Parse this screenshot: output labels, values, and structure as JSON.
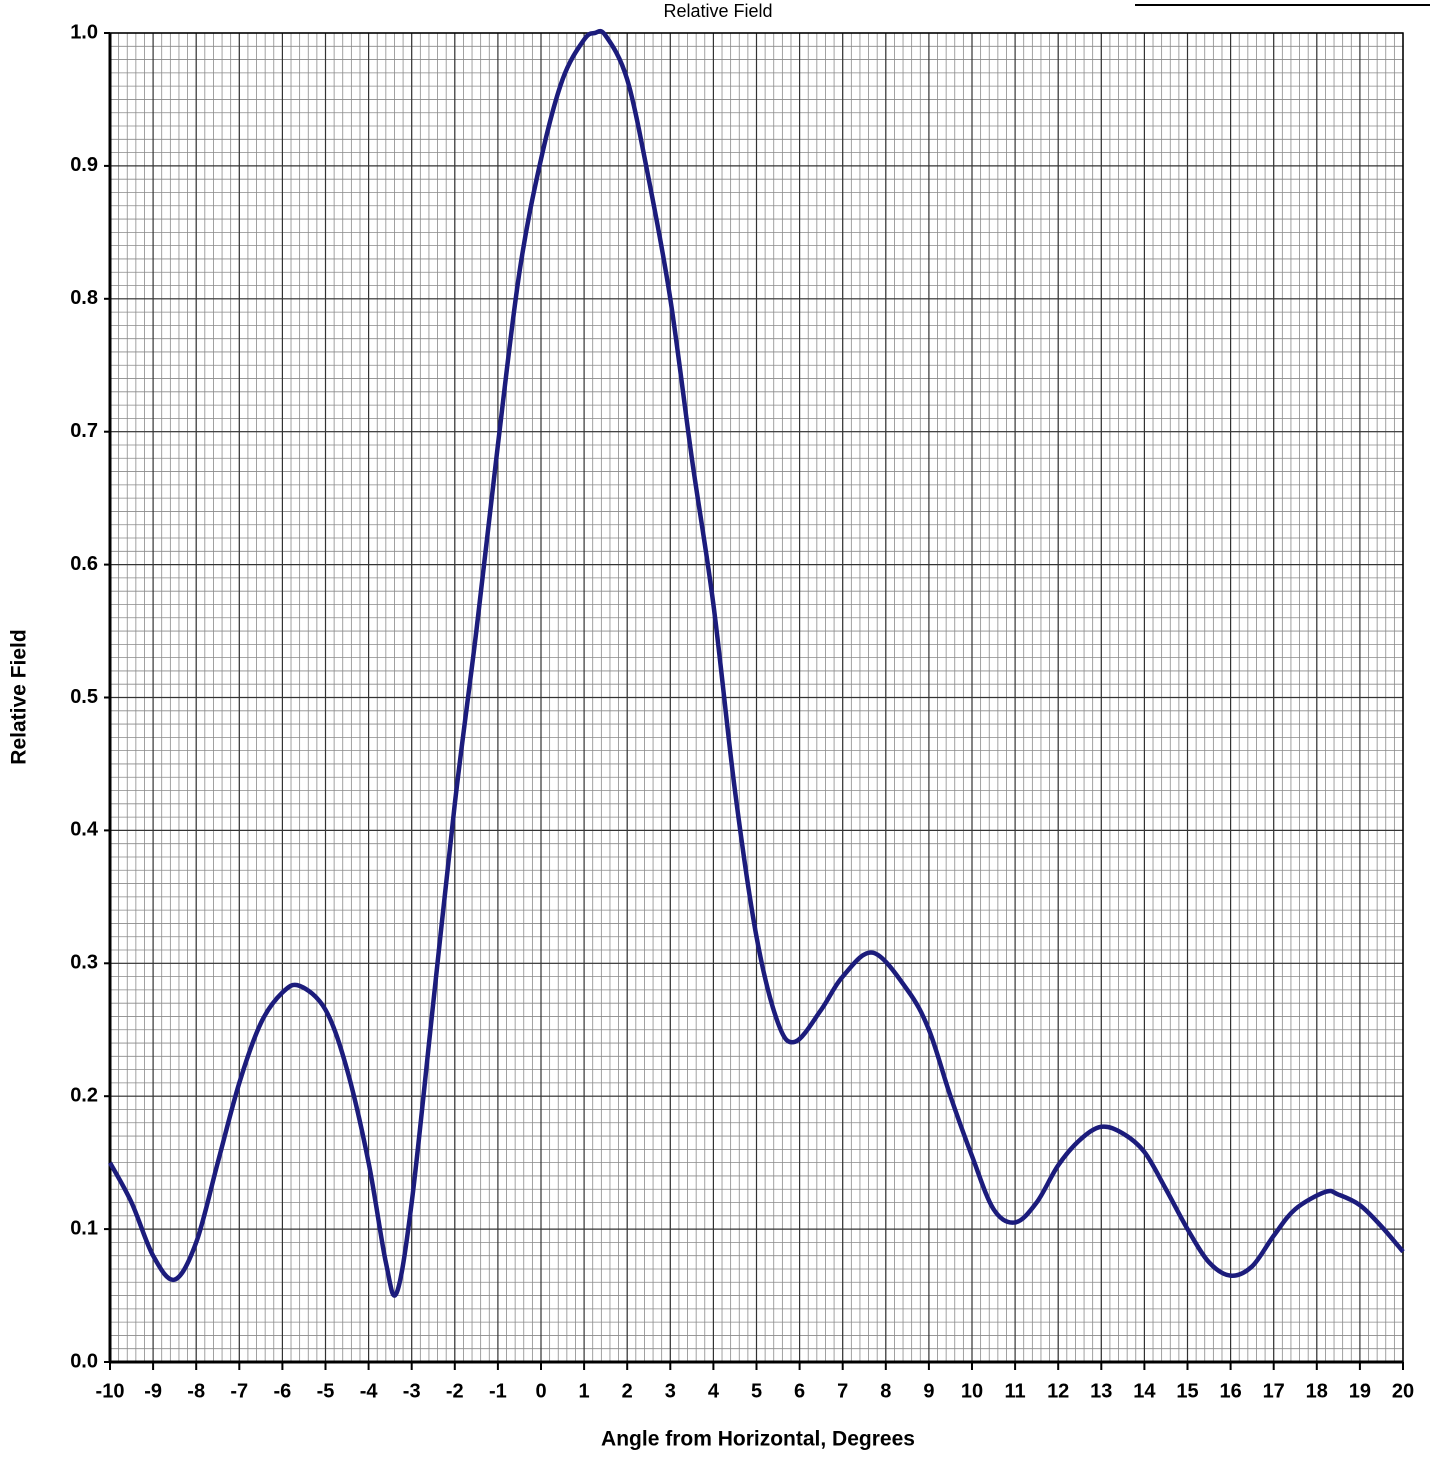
{
  "chart_data": {
    "type": "line",
    "title": "Relative Field",
    "x_label": "Angle from Horizontal, Degrees",
    "y_label": "Relative Field",
    "xlim": [
      -10,
      20
    ],
    "ylim": [
      0,
      1
    ],
    "xticks": [
      -10,
      -9,
      -8,
      -7,
      -6,
      -5,
      -4,
      -3,
      -2,
      -1,
      0,
      1,
      2,
      3,
      4,
      5,
      6,
      7,
      8,
      9,
      10,
      11,
      12,
      13,
      14,
      15,
      16,
      17,
      18,
      19,
      20
    ],
    "yticks": [
      {
        "value": 0,
        "label": "0.0"
      },
      0.1,
      0.2,
      0.3,
      0.4,
      0.5,
      0.6,
      0.7,
      0.8,
      0.9,
      {
        "value": 1,
        "label": "1.0"
      }
    ],
    "grid": true,
    "minor_grid": {
      "x": 0.2,
      "y": 0.01
    },
    "series": [
      {
        "name": "Relative Field",
        "color": "#1c1c7c",
        "x": [
          -10,
          -9.5,
          -9,
          -8.5,
          -8,
          -7.5,
          -7,
          -6.5,
          -6,
          -5.6,
          -5,
          -4.5,
          -4,
          -3.6,
          -3.35,
          -3,
          -2.5,
          -2,
          -1.5,
          -1,
          -0.5,
          0,
          0.5,
          1,
          1.25,
          1.5,
          2,
          2.5,
          3,
          3.5,
          4,
          4.5,
          5,
          5.5,
          5.9,
          6.5,
          7,
          7.7,
          8.5,
          9,
          9.5,
          10,
          10.5,
          11,
          11.5,
          12,
          12.5,
          13,
          13.5,
          14,
          14.5,
          15,
          15.5,
          16,
          16.5,
          17,
          17.5,
          18.2,
          18.5,
          19,
          19.5,
          20
        ],
        "values": [
          0.15,
          0.12,
          0.08,
          0.062,
          0.09,
          0.15,
          0.21,
          0.255,
          0.278,
          0.283,
          0.265,
          0.22,
          0.15,
          0.075,
          0.052,
          0.12,
          0.27,
          0.42,
          0.55,
          0.69,
          0.82,
          0.905,
          0.965,
          0.995,
          1.0,
          0.998,
          0.965,
          0.89,
          0.8,
          0.68,
          0.57,
          0.43,
          0.32,
          0.255,
          0.241,
          0.265,
          0.29,
          0.308,
          0.28,
          0.25,
          0.2,
          0.155,
          0.115,
          0.105,
          0.12,
          0.148,
          0.167,
          0.177,
          0.172,
          0.158,
          0.13,
          0.1,
          0.075,
          0.065,
          0.072,
          0.095,
          0.115,
          0.128,
          0.126,
          0.118,
          0.102,
          0.083
        ]
      }
    ]
  }
}
